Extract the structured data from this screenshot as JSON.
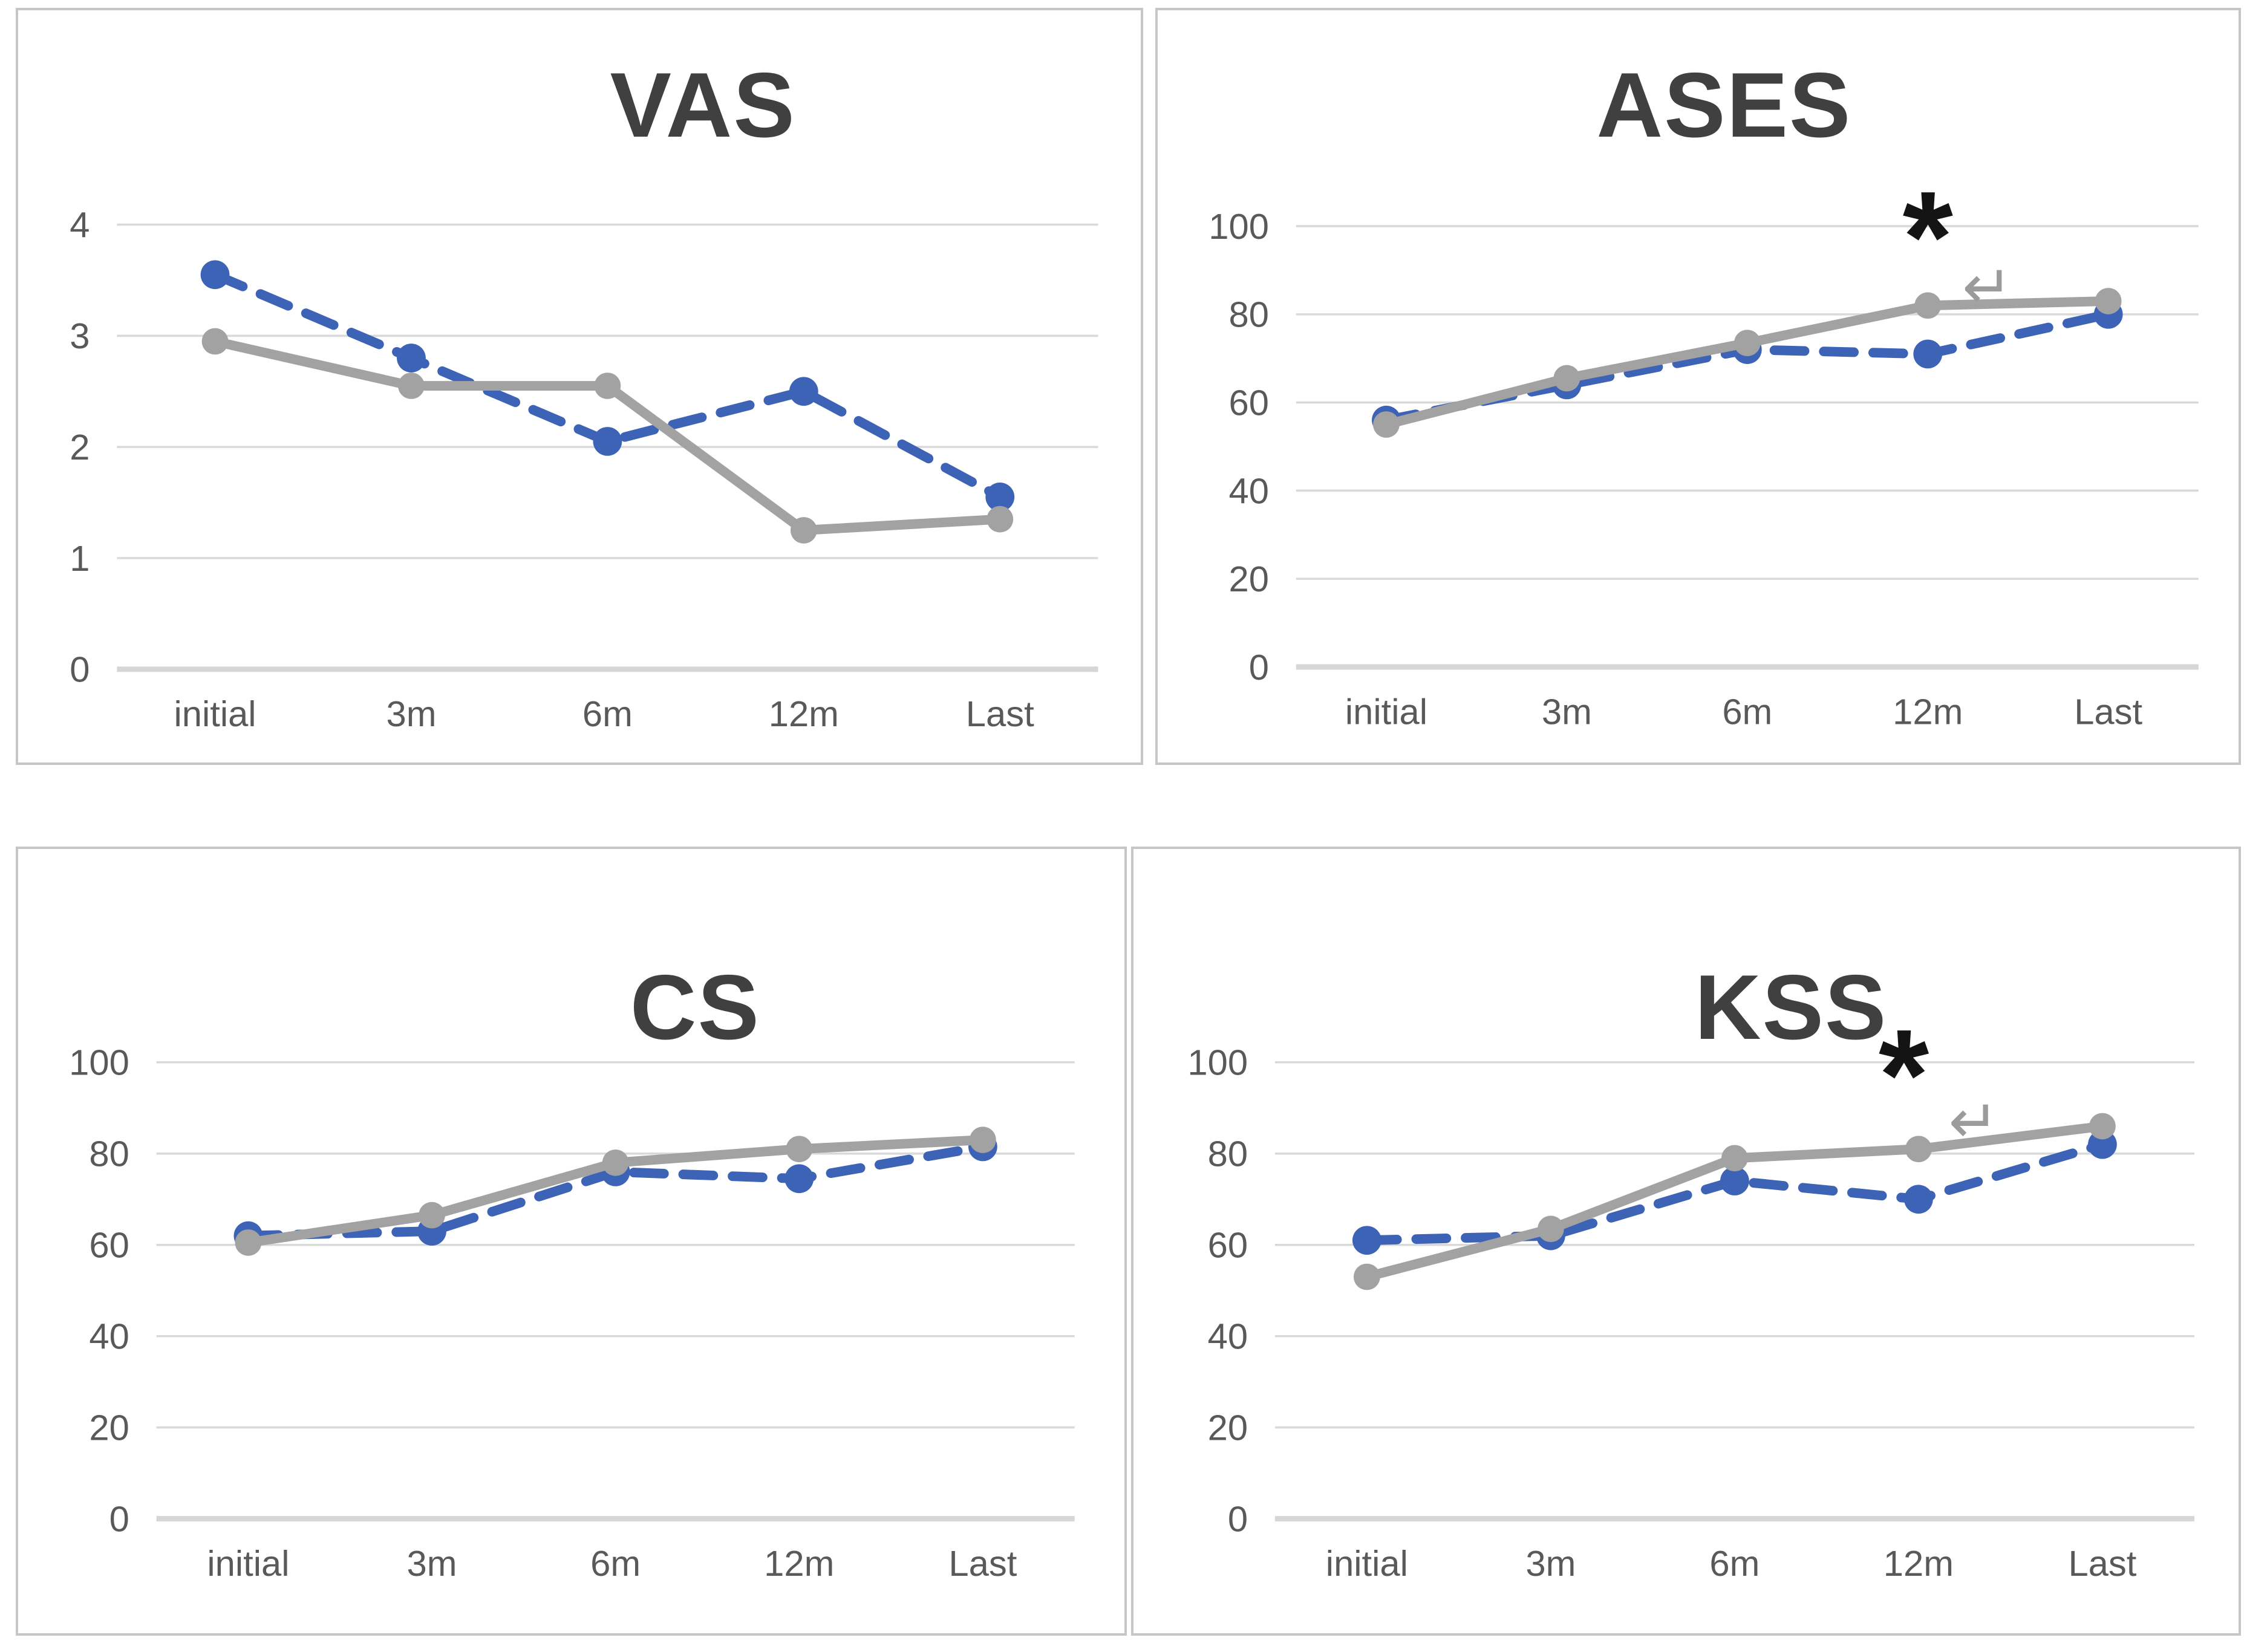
{
  "page": {
    "background": "#ffffff"
  },
  "colors": {
    "series_blue": "#3D63B6",
    "series_gray": "#A2A2A2",
    "title_text": "#404040",
    "axis_text": "#595959",
    "gridline": "#D9D9D9",
    "axis_line": "#D6D6D6",
    "panel_border": "#C6C6C9",
    "asterisk": "#141414",
    "arrow": "#9B9B9B"
  },
  "chart_data": [
    {
      "type": "line",
      "title": "VAS",
      "categories": [
        "initial",
        "3m",
        "6m",
        "12m",
        "Last"
      ],
      "xlabel": "",
      "ylabel": "",
      "ylim": [
        0,
        4
      ],
      "yticks": [
        0,
        1,
        2,
        3,
        4
      ],
      "grid": true,
      "legend": "none",
      "series": [
        {
          "name": "blue_dashed",
          "style": "dashed",
          "color_key": "series_blue",
          "values": [
            3.55,
            2.8,
            2.05,
            2.5,
            1.55
          ]
        },
        {
          "name": "gray_solid",
          "style": "solid",
          "color_key": "series_gray",
          "values": [
            2.95,
            2.55,
            2.55,
            1.25,
            1.35
          ]
        }
      ],
      "annotations": []
    },
    {
      "type": "line",
      "title": "ASES",
      "categories": [
        "initial",
        "3m",
        "6m",
        "12m",
        "Last"
      ],
      "xlabel": "",
      "ylabel": "",
      "ylim": [
        0,
        100
      ],
      "yticks": [
        0,
        20,
        40,
        60,
        80,
        100
      ],
      "grid": true,
      "legend": "none",
      "series": [
        {
          "name": "blue_dashed",
          "style": "dashed",
          "color_key": "series_blue",
          "values": [
            56,
            64,
            72,
            71,
            80
          ]
        },
        {
          "name": "gray_solid",
          "style": "solid",
          "color_key": "series_gray",
          "values": [
            55,
            65.5,
            73.5,
            82,
            83
          ]
        }
      ],
      "annotations": [
        {
          "type": "asterisk",
          "glyph": "*",
          "category_index": 3,
          "value": 87.5,
          "slot_offset": 0
        },
        {
          "type": "return_arrow",
          "glyph": "↵",
          "category_index": 3,
          "value": 81.5,
          "slot_offset": 0.33
        }
      ]
    },
    {
      "type": "line",
      "title": "CS",
      "categories": [
        "initial",
        "3m",
        "6m",
        "12m",
        "Last"
      ],
      "xlabel": "",
      "ylabel": "",
      "ylim": [
        0,
        100
      ],
      "yticks": [
        0,
        20,
        40,
        60,
        80,
        100
      ],
      "grid": true,
      "legend": "none",
      "series": [
        {
          "name": "blue_dashed",
          "style": "dashed",
          "color_key": "series_blue",
          "values": [
            62,
            63,
            76,
            74.5,
            81.5
          ]
        },
        {
          "name": "gray_solid",
          "style": "solid",
          "color_key": "series_gray",
          "values": [
            60.5,
            66.5,
            78,
            81,
            83
          ]
        }
      ],
      "annotations": []
    },
    {
      "type": "line",
      "title": "KSS",
      "categories": [
        "initial",
        "3m",
        "6m",
        "12m",
        "Last"
      ],
      "xlabel": "",
      "ylabel": "",
      "ylim": [
        0,
        100
      ],
      "yticks": [
        0,
        20,
        40,
        60,
        80,
        100
      ],
      "grid": true,
      "legend": "none",
      "series": [
        {
          "name": "blue_dashed",
          "style": "dashed",
          "color_key": "series_blue",
          "values": [
            61,
            62,
            74,
            70,
            82
          ]
        },
        {
          "name": "gray_solid",
          "style": "solid",
          "color_key": "series_gray",
          "values": [
            53,
            63.5,
            79,
            81,
            86
          ]
        }
      ],
      "annotations": [
        {
          "type": "asterisk",
          "glyph": "*",
          "category_index": 3,
          "value": 87.5,
          "slot_offset": -0.08
        },
        {
          "type": "return_arrow",
          "glyph": "↵",
          "category_index": 3,
          "value": 82.5,
          "slot_offset": 0.3
        }
      ]
    }
  ]
}
